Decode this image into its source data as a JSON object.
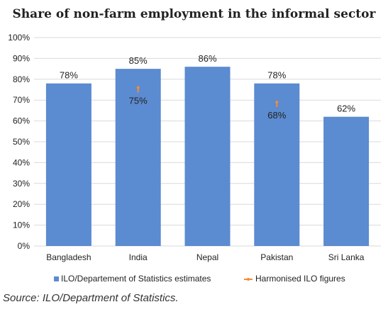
{
  "chart_data": {
    "type": "bar",
    "title": "Share of non-farm employment in the informal sector",
    "categories": [
      "Bangladesh",
      "India",
      "Nepal",
      "Pakistan",
      "Sri Lanka"
    ],
    "series": [
      {
        "name": "ILO/Departement of Statistics estimates",
        "type": "bar",
        "values": [
          78,
          85,
          86,
          78,
          62
        ],
        "labels": [
          "78%",
          "85%",
          "86%",
          "78%",
          "62%"
        ],
        "color": "#5b8bd0"
      },
      {
        "name": "Harmonised ILO figures",
        "type": "marker",
        "values": [
          null,
          75,
          null,
          68,
          null
        ],
        "labels": [
          "",
          "75%",
          "",
          "68%",
          ""
        ],
        "color": "#f28c38"
      }
    ],
    "ylim": [
      0,
      100
    ],
    "yticks": [
      "0%",
      "10%",
      "20%",
      "30%",
      "40%",
      "50%",
      "60%",
      "70%",
      "80%",
      "90%",
      "100%"
    ],
    "grid": true,
    "legend_position": "bottom"
  },
  "source": "Source: ILO/Department of Statistics."
}
